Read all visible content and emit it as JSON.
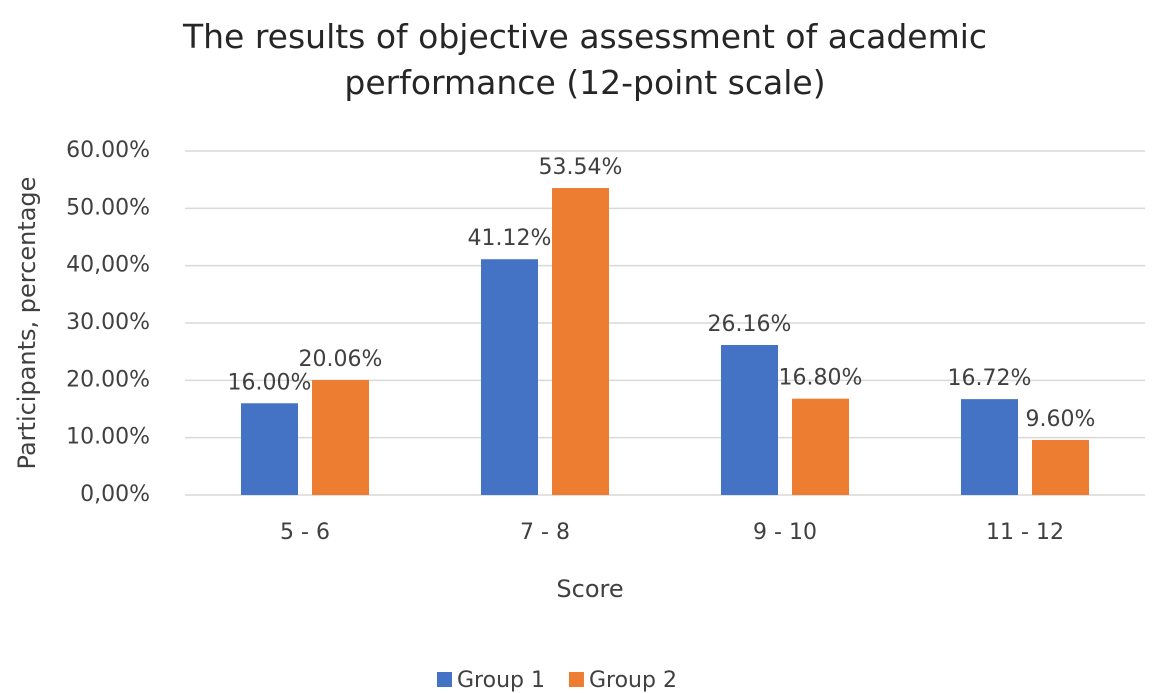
{
  "chart_data": {
    "type": "bar",
    "title": "The results of objective assessment of academic performance (12-point scale)",
    "x_label": "Score",
    "y_label": "Participants, percentage",
    "categories": [
      "5 - 6",
      "7 - 8",
      "9 - 10",
      "11 - 12"
    ],
    "series": [
      {
        "name": "Group 1",
        "color": "#4472c4",
        "values": [
          16.0,
          41.12,
          26.16,
          16.72
        ],
        "value_labels": [
          "16.00%",
          "41.12%",
          "26.16%",
          "16.72%"
        ]
      },
      {
        "name": "Group 2",
        "color": "#ed7d31",
        "values": [
          20.06,
          53.54,
          16.8,
          9.6
        ],
        "value_labels": [
          "20.06%",
          "53.54%",
          "16.80%",
          "9.60%"
        ]
      }
    ],
    "ylim": [
      0,
      60
    ],
    "yticks": [
      {
        "value": 0,
        "label": "0,00%"
      },
      {
        "value": 10,
        "label": "10.00%"
      },
      {
        "value": 20,
        "label": "20.00%"
      },
      {
        "value": 30,
        "label": "30.00%"
      },
      {
        "value": 40,
        "label": "40,00%"
      },
      {
        "value": 50,
        "label": "50.00%"
      },
      {
        "value": 60,
        "label": "60.00%"
      }
    ],
    "grid": true,
    "legend": "bottom"
  }
}
